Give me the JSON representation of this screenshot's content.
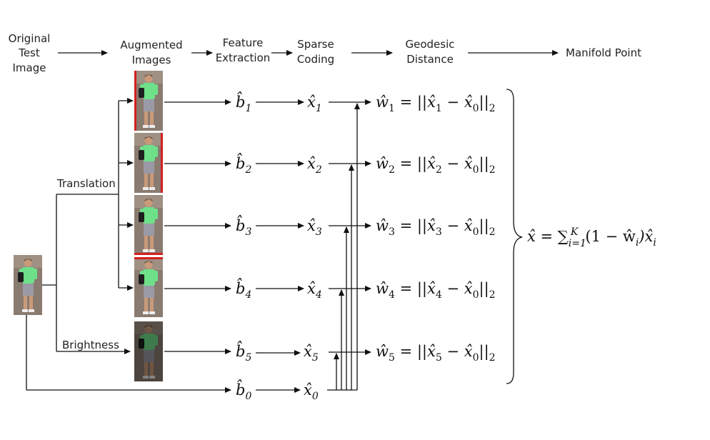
{
  "headers": {
    "original_1": "Original",
    "original_2": "Test",
    "original_3": "Image",
    "augmented_1": "Augmented",
    "augmented_2": "Images",
    "feature_1": "Feature",
    "feature_2": "Extraction",
    "sparse_1": "Sparse",
    "sparse_2": "Coding",
    "geodesic_1": "Geodesic",
    "geodesic_2": "Distance",
    "manifold": "Manifold Point"
  },
  "labels": {
    "translation": "Translation",
    "brightness": "Brightness"
  },
  "rows": [
    {
      "feature": "b̂",
      "sub": "1",
      "code": "x̂",
      "weight": "ŵ"
    },
    {
      "feature": "b̂",
      "sub": "2",
      "code": "x̂",
      "weight": "ŵ"
    },
    {
      "feature": "b̂",
      "sub": "3",
      "code": "x̂",
      "weight": "ŵ"
    },
    {
      "feature": "b̂",
      "sub": "4",
      "code": "x̂",
      "weight": "ŵ"
    },
    {
      "feature": "b̂",
      "sub": "5",
      "code": "x̂",
      "weight": "ŵ"
    }
  ],
  "base": {
    "feature": "b̂",
    "sub": "0",
    "code": "x̂"
  },
  "formula": {
    "lhs": "x̂ = ∑",
    "sum_sub": "i=1",
    "sum_sup": "K",
    "rhs": "(1 − ŵ",
    "rhs_sub": "i",
    "rhs2": ")x̂",
    "rhs2_sub": "i"
  },
  "colors": {
    "shirt": "#6fe08a",
    "shorts": "#9a9aa6",
    "skin": "#c99a7a",
    "hair": "#3a2a22",
    "bag": "#1e1e1e",
    "background": "#8a7b70",
    "border_red": "#d42020"
  }
}
